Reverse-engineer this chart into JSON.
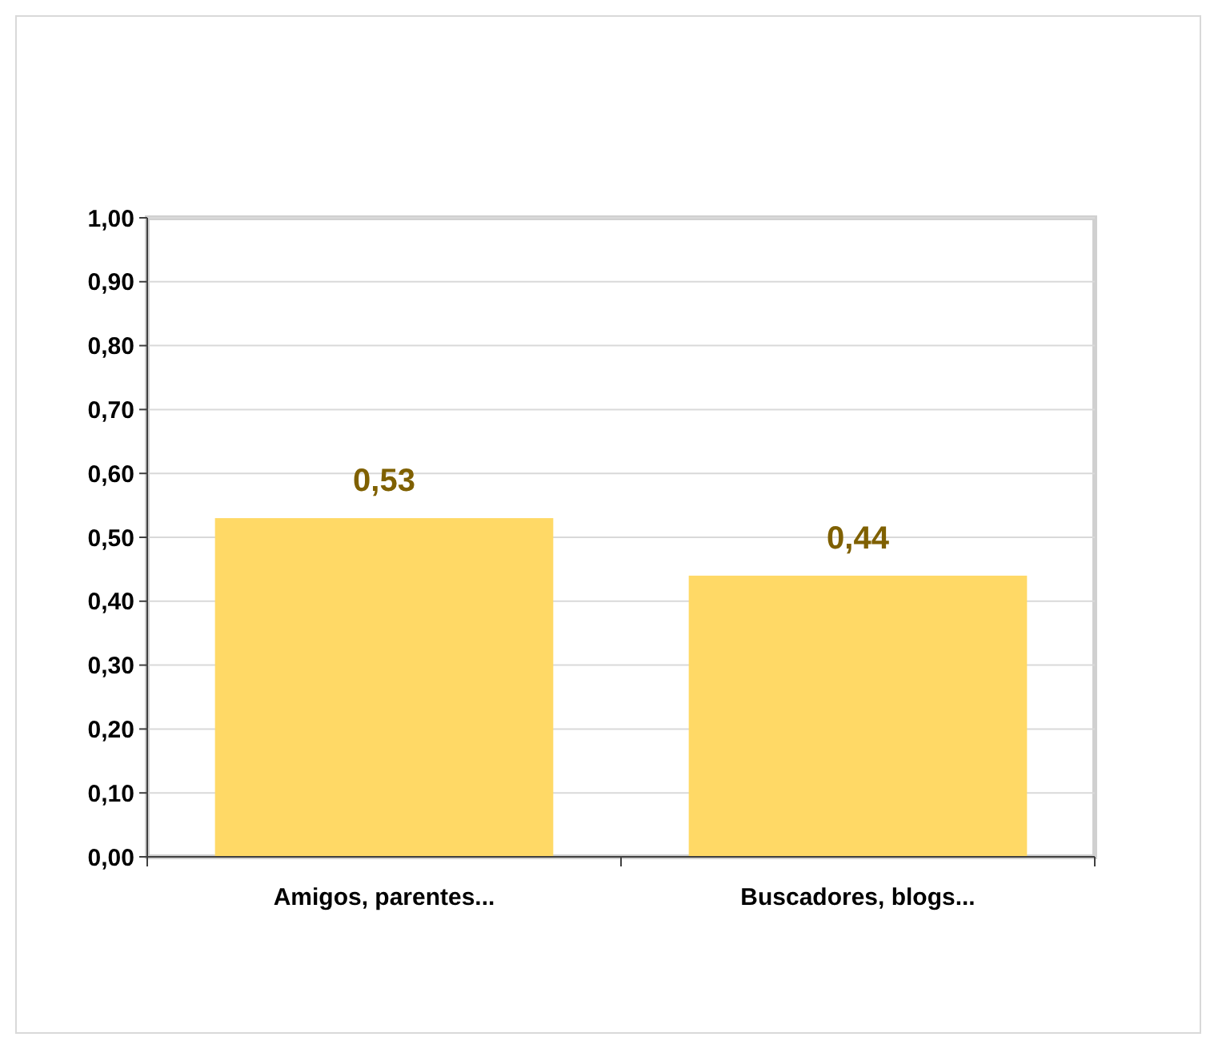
{
  "chart_data": {
    "type": "bar",
    "categories": [
      "Amigos, parentes...",
      "Buscadores, blogs..."
    ],
    "values": [
      0.53,
      0.44
    ],
    "color": "#ffd966",
    "value_labels": [
      "0,53",
      "0,44"
    ],
    "ylim": [
      0,
      1
    ],
    "yticks": [
      {
        "value": 0,
        "label": "0,00"
      },
      {
        "value": 0.1,
        "label": "0,10"
      },
      {
        "value": 0.2,
        "label": "0,20"
      },
      {
        "value": 0.3,
        "label": "0,30"
      },
      {
        "value": 0.4,
        "label": "0,40"
      },
      {
        "value": 0.5,
        "label": "0,50"
      },
      {
        "value": 0.6,
        "label": "0,60"
      },
      {
        "value": 0.7,
        "label": "0,70"
      },
      {
        "value": 0.8,
        "label": "0,80"
      },
      {
        "value": 0.9,
        "label": "0,90"
      },
      {
        "value": 1,
        "label": "1,00"
      }
    ],
    "grid": "y"
  }
}
